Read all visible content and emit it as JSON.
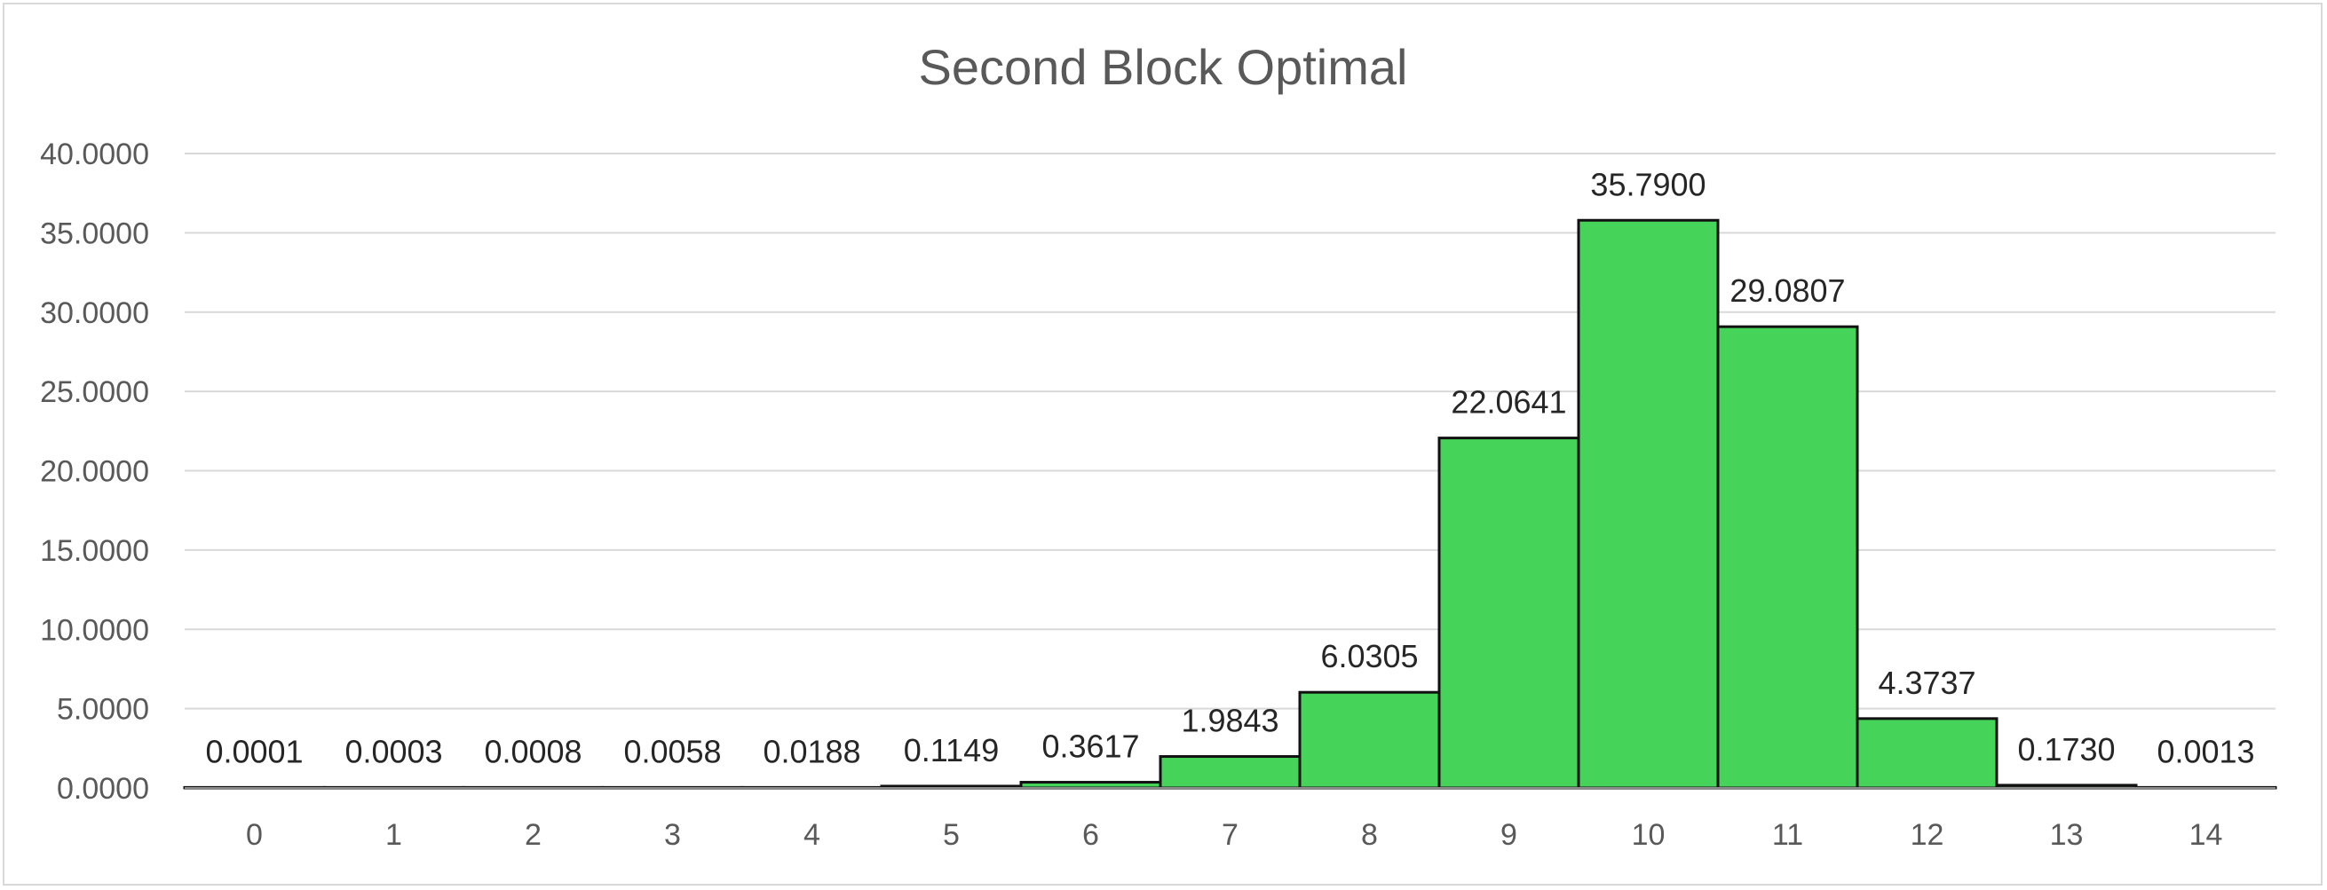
{
  "chart_data": {
    "type": "bar",
    "title": "Second Block Optimal",
    "xlabel": "",
    "ylabel": "",
    "categories": [
      "0",
      "1",
      "2",
      "3",
      "4",
      "5",
      "6",
      "7",
      "8",
      "9",
      "10",
      "11",
      "12",
      "13",
      "14"
    ],
    "values": [
      0.0001,
      0.0003,
      0.0008,
      0.0058,
      0.0188,
      0.1149,
      0.3617,
      1.9843,
      6.0305,
      22.0641,
      35.79,
      29.0807,
      4.3737,
      0.173,
      0.0013
    ],
    "data_labels": [
      "0.0001",
      "0.0003",
      "0.0008",
      "0.0058",
      "0.0188",
      "0.1149",
      "0.3617",
      "1.9843",
      "6.0305",
      "22.0641",
      "35.7900",
      "29.0807",
      "4.3737",
      "0.1730",
      "0.0013"
    ],
    "ylim": [
      0,
      40
    ],
    "y_ticks": [
      0,
      5,
      10,
      15,
      20,
      25,
      30,
      35,
      40
    ],
    "y_tick_labels": [
      "0.0000",
      "5.0000",
      "10.0000",
      "15.0000",
      "20.0000",
      "25.0000",
      "30.0000",
      "35.0000",
      "40.0000"
    ],
    "grid": true,
    "legend": "none",
    "bar_color": "#46d35a",
    "bar_border_color": "#111111"
  }
}
